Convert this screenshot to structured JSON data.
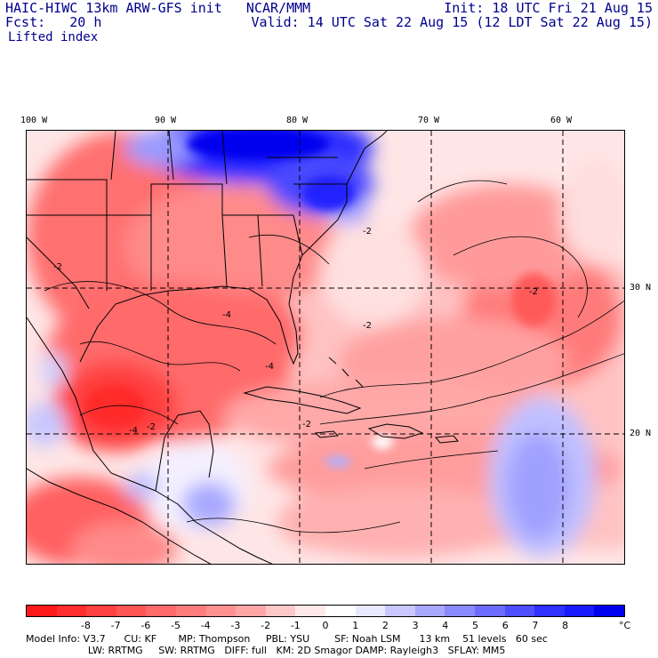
{
  "header": {
    "left_line1": "HAIC-HIWC 13km ARW-GFS init   NCAR/MMM",
    "left_line2": "Fcst:   20 h",
    "field": "Lifted index",
    "right_line1": "Init: 18 UTC Fri 21 Aug 15",
    "right_line2": "Valid: 14 UTC Sat 22 Aug 15 (12 LDT Sat 22 Aug 15)"
  },
  "map": {
    "lon_labels": [
      "100 W",
      "90 W",
      "80 W",
      "70 W",
      "60 W"
    ],
    "lat_labels": [
      "30 N",
      "20 N"
    ],
    "contour_labels": [
      "-2",
      "-2",
      "-4",
      "-4",
      "-2",
      "-2",
      "-4",
      "-2",
      "-2"
    ],
    "colors": {
      "land_line": "#000000",
      "grid_line": "#000000"
    }
  },
  "colorbar": {
    "labels": [
      "-8",
      "-7",
      "-6",
      "-5",
      "-4",
      "-3",
      "-2",
      "-1",
      "0",
      "1",
      "2",
      "3",
      "4",
      "5",
      "6",
      "7",
      "8"
    ],
    "unit": "°C",
    "colors": [
      "#ff1a1a",
      "#ff2d2d",
      "#ff4141",
      "#ff5555",
      "#ff6969",
      "#ff7d7d",
      "#ff9191",
      "#ffa5a5",
      "#ffc8c8",
      "#ffe8e8",
      "#ffffff",
      "#e8e8ff",
      "#c8c8ff",
      "#a8a8ff",
      "#8a8aff",
      "#6c6cff",
      "#4e4eff",
      "#3030ff",
      "#1a1aff",
      "#0000ee"
    ]
  },
  "model_info": {
    "line1": "Model Info: V3.7      CU: KF       MP: Thompson     PBL: YSU        SF: Noah LSM      13 km    51 levels   60 sec",
    "line2": "                    LW: RRTMG     SW: RRTMG   DIFF: full   KM: 2D Smagor DAMP: Rayleigh3   SFLAY: MM5"
  }
}
